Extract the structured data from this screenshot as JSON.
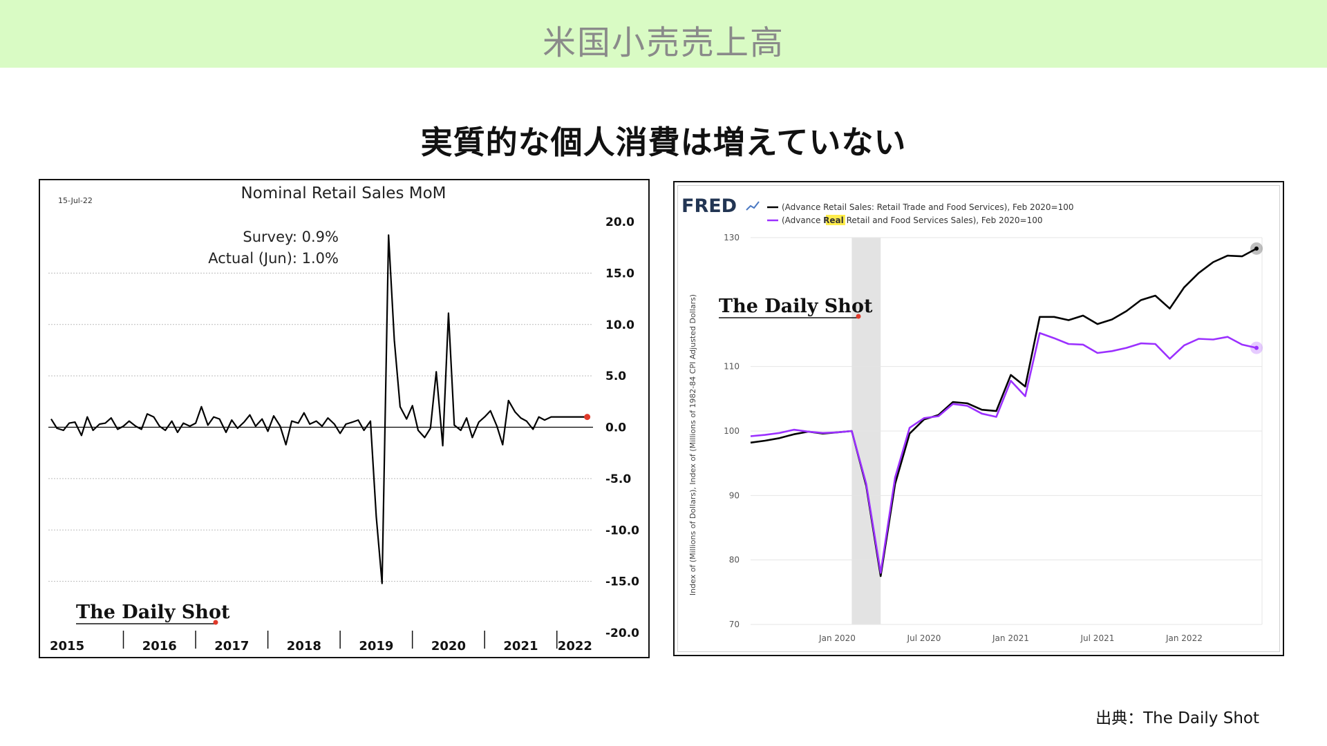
{
  "header": {
    "banner_title": "米国小売売上高",
    "headline": "実質的な個人消費は増えていない"
  },
  "source": "出典：The Daily Shot",
  "colors": {
    "banner_bg": "#d9fbc4",
    "nominal": "#000000",
    "real": "#9b30ff",
    "recession_shade": "#e3e3e3",
    "marker_red": "#e03a2a"
  },
  "chart_data": [
    {
      "type": "line",
      "title": "Nominal Retail Sales MoM",
      "date_stamp": "15-Jul-22",
      "annotations": {
        "survey": "Survey:  0.9%",
        "actual": "Actual (Jun):  1.0%"
      },
      "logo": "The Daily Shot",
      "x_tick_labels": [
        "2015",
        "2016",
        "2017",
        "2018",
        "2019",
        "2020",
        "2021",
        "2022"
      ],
      "y_tick_labels": [
        "20.0",
        "15.0",
        "10.0",
        "5.0",
        "0.0",
        "-5.0",
        "-10.0",
        "-15.0",
        "-20.0"
      ],
      "ylim": [
        -20,
        20
      ],
      "y_axis_position": "right",
      "grid": true,
      "x_start": 2015.0,
      "x_end": 2022.5,
      "series": [
        {
          "x": [
            2015.0,
            2015.08,
            2015.17,
            2015.25,
            2015.33,
            2015.42,
            2015.5,
            2015.58,
            2015.67,
            2015.75,
            2015.83,
            2015.92,
            2016.0,
            2016.08,
            2016.17,
            2016.25,
            2016.33,
            2016.42,
            2016.5,
            2016.58,
            2016.67,
            2016.75,
            2016.83,
            2016.92,
            2017.0,
            2017.08,
            2017.17,
            2017.25,
            2017.33,
            2017.42,
            2017.5,
            2017.58,
            2017.67,
            2017.75,
            2017.83,
            2017.92,
            2018.0,
            2018.08,
            2018.17,
            2018.25,
            2018.33,
            2018.42,
            2018.5,
            2018.58,
            2018.67,
            2018.75,
            2018.83,
            2018.92,
            2019.0,
            2019.08,
            2019.17,
            2019.25,
            2019.33,
            2019.42,
            2019.5,
            2019.58,
            2019.67,
            2019.75,
            2019.83,
            2019.92,
            2020.0,
            2020.08,
            2020.17,
            2020.25,
            2020.33,
            2020.42,
            2020.5,
            2020.58,
            2020.67,
            2020.75,
            2020.83,
            2020.92,
            2021.0,
            2021.08,
            2021.17,
            2021.25,
            2021.33,
            2021.42,
            2021.5,
            2021.58,
            2021.67,
            2021.75,
            2021.83,
            2021.92,
            2022.0,
            2022.08,
            2022.17,
            2022.25,
            2022.33,
            2022.42
          ],
          "values": [
            0.8,
            -0.1,
            -0.3,
            0.4,
            0.5,
            -0.8,
            1.0,
            -0.3,
            0.3,
            0.4,
            0.9,
            -0.2,
            0.1,
            0.6,
            0.1,
            -0.2,
            1.3,
            1.0,
            0.1,
            -0.3,
            0.6,
            -0.5,
            0.4,
            0.1,
            0.4,
            2.0,
            0.2,
            1.0,
            0.8,
            -0.5,
            0.7,
            -0.1,
            0.5,
            1.2,
            0.1,
            0.8,
            -0.4,
            1.1,
            0.1,
            -1.7,
            0.6,
            0.4,
            1.4,
            0.3,
            0.6,
            0.1,
            0.9,
            0.3,
            -0.6,
            0.3,
            0.5,
            0.7,
            -0.3,
            0.6,
            -8.7,
            -15.2,
            18.7,
            8.5,
            2.0,
            0.8,
            2.1,
            -0.3,
            -1.0,
            -0.1,
            5.4,
            -1.8,
            11.1,
            0.2,
            -0.3,
            0.9,
            -1.0,
            0.5,
            1.0,
            1.6,
            0.1,
            -1.7,
            2.6,
            1.5,
            0.9,
            0.6,
            -0.2,
            1.0,
            0.7,
            1.0,
            1.0,
            1.0,
            1.0,
            1.0,
            1.0,
            1.0
          ]
        }
      ],
      "last_value_marker": 1.0
    },
    {
      "type": "line",
      "brand": "FRED",
      "legend": [
        {
          "prefix": "(Advance Retail Sales: Retail Trade and Food Services), Feb 2020=100",
          "highlight": ""
        },
        {
          "prefix": "(Advance ",
          "highlight": "Real",
          "suffix": " Retail and Food Services Sales), Feb 2020=100"
        }
      ],
      "ylabel": "Index of (Millions of Dollars), Index of (Millions of 1982-84 CPI Adjusted Dollars)",
      "logo": "The Daily Shot",
      "y_tick_labels": [
        "130",
        "110",
        "100",
        "90",
        "80",
        "70"
      ],
      "x_tick_labels": [
        "Jan 2020",
        "Jul 2020",
        "Jan 2021",
        "Jul 2021",
        "Jan 2022"
      ],
      "recession_band": [
        "2020-02",
        "2020-04"
      ],
      "ylim": [
        70,
        130
      ],
      "grid": true,
      "x": [
        "2019-07",
        "2019-08",
        "2019-09",
        "2019-10",
        "2019-11",
        "2019-12",
        "2020-01",
        "2020-02",
        "2020-03",
        "2020-04",
        "2020-05",
        "2020-06",
        "2020-07",
        "2020-08",
        "2020-09",
        "2020-10",
        "2020-11",
        "2020-12",
        "2021-01",
        "2021-02",
        "2021-03",
        "2021-04",
        "2021-05",
        "2021-06",
        "2021-07",
        "2021-08",
        "2021-09",
        "2021-10",
        "2021-11",
        "2021-12",
        "2022-01",
        "2022-02",
        "2022-03",
        "2022-04",
        "2022-05",
        "2022-06"
      ],
      "series": [
        {
          "name": "Advance Retail Sales: Retail Trade and Food Services",
          "values": [
            98.2,
            98.5,
            98.9,
            99.5,
            99.9,
            99.6,
            99.8,
            100.0,
            91.5,
            77.5,
            91.8,
            99.6,
            101.8,
            102.5,
            104.5,
            104.3,
            103.3,
            103.1,
            108.7,
            106.9,
            117.7,
            117.7,
            117.2,
            117.9,
            116.6,
            117.3,
            118.6,
            120.3,
            121.0,
            119.0,
            122.3,
            124.5,
            126.2,
            127.2,
            127.1,
            128.3
          ]
        },
        {
          "name": "Advance Real Retail and Food Services Sales",
          "values": [
            99.2,
            99.4,
            99.7,
            100.2,
            99.9,
            99.7,
            99.8,
            100.0,
            91.8,
            78.0,
            92.8,
            100.5,
            102.0,
            102.3,
            104.2,
            103.9,
            102.7,
            102.2,
            107.8,
            105.4,
            115.2,
            114.4,
            113.5,
            113.4,
            112.1,
            112.4,
            112.9,
            113.6,
            113.5,
            111.2,
            113.3,
            114.3,
            114.2,
            114.6,
            113.4,
            112.9
          ]
        }
      ]
    }
  ]
}
